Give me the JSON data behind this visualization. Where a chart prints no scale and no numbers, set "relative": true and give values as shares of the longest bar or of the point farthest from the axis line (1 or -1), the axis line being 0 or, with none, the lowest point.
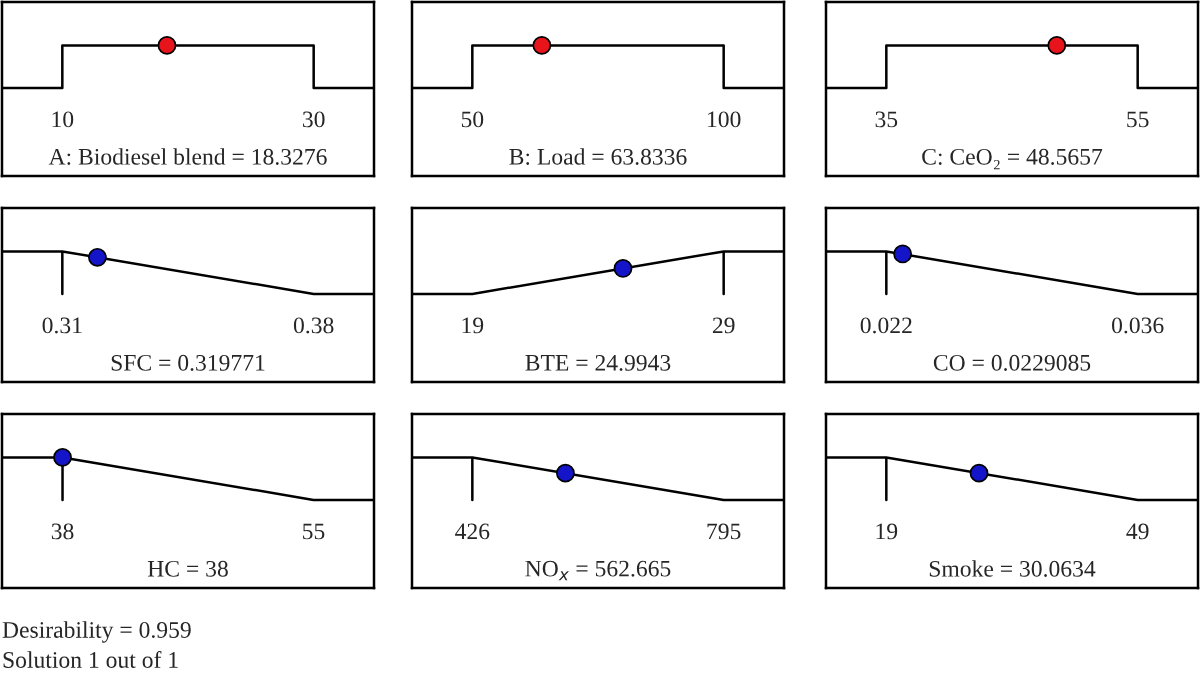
{
  "chart_data": [
    {
      "type": "line",
      "relative": true,
      "xlabel": "A: Biodiesel blend = 18.3276",
      "xlim": [
        5.2,
        34.8
      ],
      "xticks": [
        10,
        30
      ],
      "grid": false,
      "series": [
        {
          "type": "line",
          "color": "#000000",
          "marker": "none",
          "x": [
            5.2,
            10,
            10,
            30,
            30,
            34.8
          ],
          "values": [
            0,
            0,
            1,
            1,
            0,
            0
          ]
        },
        {
          "type": "scatter",
          "color": "#e8141c",
          "marker": "circle",
          "x": [
            18.3276
          ],
          "values": [
            1
          ]
        }
      ]
    },
    {
      "type": "line",
      "relative": true,
      "xlabel": "B: Load = 63.8336",
      "xlim": [
        38,
        112
      ],
      "xticks": [
        50,
        100
      ],
      "grid": false,
      "series": [
        {
          "type": "line",
          "color": "#000000",
          "marker": "none",
          "x": [
            38,
            50,
            50,
            100,
            100,
            112
          ],
          "values": [
            0,
            0,
            1,
            1,
            0,
            0
          ]
        },
        {
          "type": "scatter",
          "color": "#e8141c",
          "marker": "circle",
          "x": [
            63.8336
          ],
          "values": [
            1
          ]
        }
      ]
    },
    {
      "type": "line",
      "relative": true,
      "xlabel": "C: CeO₂ = 48.5657",
      "xlim": [
        30.2,
        59.8
      ],
      "xticks": [
        35,
        55
      ],
      "grid": false,
      "series": [
        {
          "type": "line",
          "color": "#000000",
          "marker": "none",
          "x": [
            30.2,
            35,
            35,
            55,
            55,
            59.8
          ],
          "values": [
            0,
            0,
            1,
            1,
            0,
            0
          ]
        },
        {
          "type": "scatter",
          "color": "#e8141c",
          "marker": "circle",
          "x": [
            48.5657
          ],
          "values": [
            1
          ]
        }
      ]
    },
    {
      "type": "line",
      "relative": true,
      "xlabel": "SFC = 0.319771",
      "xlim": [
        0.2932,
        0.3968
      ],
      "xticks": [
        0.31,
        0.38
      ],
      "grid": false,
      "series": [
        {
          "type": "line",
          "color": "#000000",
          "marker": "none",
          "x": [
            0.2932,
            0.31,
            0.31,
            0.31,
            0.38,
            0.3968
          ],
          "values": [
            1,
            1,
            0,
            1,
            0,
            0
          ]
        },
        {
          "type": "scatter",
          "color": "#1414c8",
          "marker": "circle",
          "x": [
            0.319771
          ],
          "values": [
            0.86
          ]
        }
      ]
    },
    {
      "type": "line",
      "relative": true,
      "xlabel": "BTE = 24.9943",
      "xlim": [
        16.6,
        31.4
      ],
      "xticks": [
        19,
        29
      ],
      "grid": false,
      "series": [
        {
          "type": "line",
          "color": "#000000",
          "marker": "none",
          "x": [
            16.6,
            19,
            29,
            29,
            29,
            31.4
          ],
          "values": [
            0,
            0,
            1,
            0,
            1,
            1
          ]
        },
        {
          "type": "scatter",
          "color": "#1414c8",
          "marker": "circle",
          "x": [
            24.9943
          ],
          "values": [
            0.6
          ]
        }
      ]
    },
    {
      "type": "line",
      "relative": true,
      "xlabel": "CO = 0.0229085",
      "xlim": [
        0.01864,
        0.03936
      ],
      "xticks": [
        0.022,
        0.036
      ],
      "grid": false,
      "series": [
        {
          "type": "line",
          "color": "#000000",
          "marker": "none",
          "x": [
            0.01864,
            0.022,
            0.022,
            0.022,
            0.036,
            0.03936
          ],
          "values": [
            1,
            1,
            0,
            1,
            0,
            0
          ]
        },
        {
          "type": "scatter",
          "color": "#1414c8",
          "marker": "circle",
          "x": [
            0.0229085
          ],
          "values": [
            0.94
          ]
        }
      ]
    },
    {
      "type": "line",
      "relative": true,
      "xlabel": "HC = 38",
      "xlim": [
        33.9,
        59.1
      ],
      "xticks": [
        38,
        55
      ],
      "grid": false,
      "series": [
        {
          "type": "line",
          "color": "#000000",
          "marker": "none",
          "x": [
            33.9,
            38,
            38,
            38,
            55,
            59.1
          ],
          "values": [
            1,
            1,
            0,
            1,
            0,
            0
          ]
        },
        {
          "type": "scatter",
          "color": "#1414c8",
          "marker": "circle",
          "x": [
            38
          ],
          "values": [
            1
          ]
        }
      ]
    },
    {
      "type": "line",
      "relative": true,
      "xlabel": "NO$_{x}$ = 562.665",
      "xlim": [
        337.4,
        883.6
      ],
      "xticks": [
        426,
        795
      ],
      "grid": false,
      "series": [
        {
          "type": "line",
          "color": "#000000",
          "marker": "none",
          "x": [
            337.4,
            426,
            426,
            426,
            795,
            883.6
          ],
          "values": [
            1,
            1,
            0,
            1,
            0,
            0
          ]
        },
        {
          "type": "scatter",
          "color": "#1414c8",
          "marker": "circle",
          "x": [
            562.665
          ],
          "values": [
            0.63
          ]
        }
      ]
    },
    {
      "type": "line",
      "relative": true,
      "xlabel": "Smoke = 30.0634",
      "xlim": [
        11.8,
        56.2
      ],
      "xticks": [
        19,
        49
      ],
      "grid": false,
      "annotations": [
        "Desirability = 0.959",
        "Solution 1 out of 1"
      ],
      "series": [
        {
          "type": "line",
          "color": "#000000",
          "marker": "none",
          "x": [
            11.8,
            19,
            19,
            19,
            49,
            56.2
          ],
          "values": [
            1,
            1,
            0,
            1,
            0,
            0
          ]
        },
        {
          "type": "scatter",
          "color": "#1414c8",
          "marker": "circle",
          "x": [
            30.0634
          ],
          "values": [
            0.63
          ]
        }
      ]
    }
  ]
}
